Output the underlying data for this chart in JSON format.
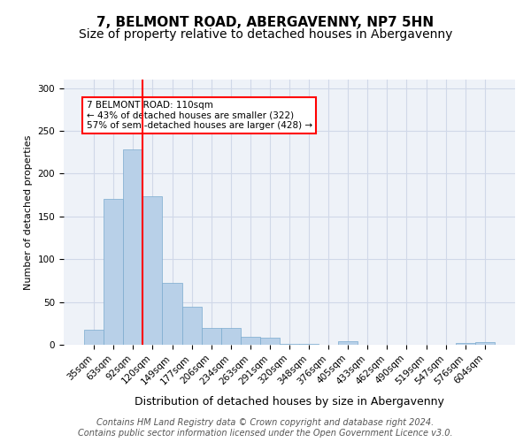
{
  "title": "7, BELMONT ROAD, ABERGAVENNY, NP7 5HN",
  "subtitle": "Size of property relative to detached houses in Abergavenny",
  "xlabel": "Distribution of detached houses by size in Abergavenny",
  "ylabel": "Number of detached properties",
  "categories": [
    "35sqm",
    "63sqm",
    "92sqm",
    "120sqm",
    "149sqm",
    "177sqm",
    "206sqm",
    "234sqm",
    "263sqm",
    "291sqm",
    "320sqm",
    "348sqm",
    "376sqm",
    "405sqm",
    "433sqm",
    "462sqm",
    "490sqm",
    "519sqm",
    "547sqm",
    "576sqm",
    "604sqm"
  ],
  "values": [
    18,
    170,
    228,
    174,
    72,
    44,
    20,
    20,
    9,
    8,
    1,
    1,
    0,
    4,
    0,
    0,
    0,
    0,
    0,
    2,
    3
  ],
  "bar_color": "#b8d0e8",
  "bar_edge_color": "#7aaace",
  "property_line_x": 2.5,
  "property_size": "110sqm",
  "annotation_text": "7 BELMONT ROAD: 110sqm\n← 43% of detached houses are smaller (322)\n57% of semi-detached houses are larger (428) →",
  "annotation_box_color": "white",
  "annotation_box_edge_color": "red",
  "vline_color": "red",
  "ylim": [
    0,
    310
  ],
  "yticks": [
    0,
    50,
    100,
    150,
    200,
    250,
    300
  ],
  "grid_color": "#d0d8e8",
  "background_color": "#eef2f8",
  "footer_line1": "Contains HM Land Registry data © Crown copyright and database right 2024.",
  "footer_line2": "Contains public sector information licensed under the Open Government Licence v3.0.",
  "title_fontsize": 11,
  "subtitle_fontsize": 10,
  "xlabel_fontsize": 9,
  "ylabel_fontsize": 8,
  "tick_fontsize": 7.5,
  "footer_fontsize": 7
}
